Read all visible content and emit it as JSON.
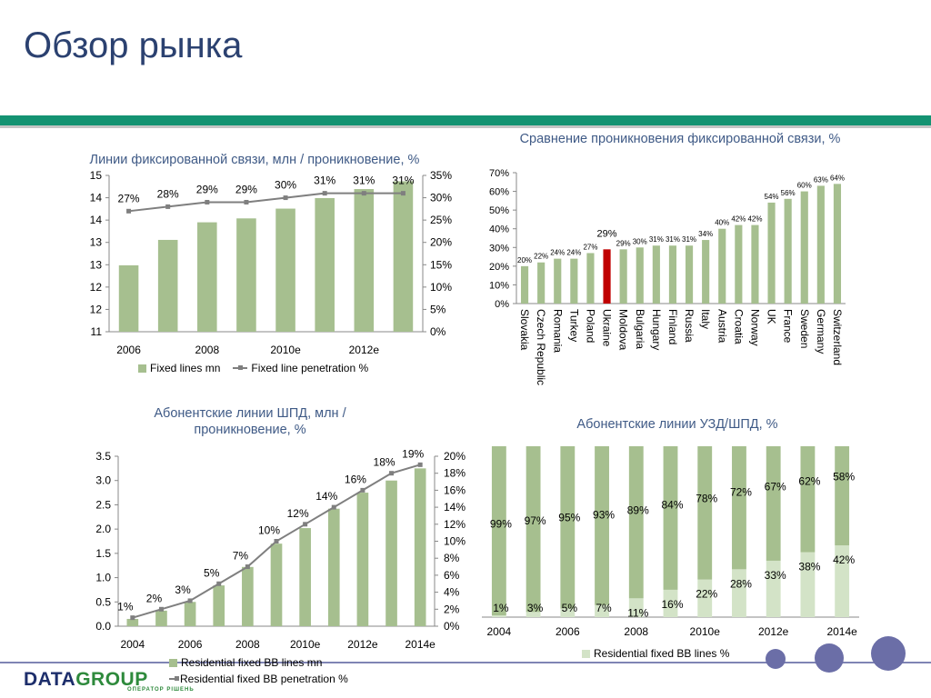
{
  "page": {
    "title": "Обзор рынка"
  },
  "logo": {
    "part1": "DATA",
    "part2": "GROUP",
    "tagline": "ОПЕРАТОР РІШЕНЬ"
  },
  "colors": {
    "bar": "#a6bf8f",
    "bar_light": "#d3e3c7",
    "highlight": "#c00000",
    "line": "#7f7f7f",
    "title": "#3f5a86",
    "stripe": "#149372"
  },
  "chart_data": [
    {
      "type": "bar",
      "title": "Линии фиксированной связи, млн / проникновение, %",
      "categories": [
        "2006",
        "2007",
        "2008",
        "2009",
        "2010e",
        "2011e",
        "2012e",
        "2013e"
      ],
      "x_tick_labels": [
        "2006",
        "2008",
        "2010e",
        "2012e"
      ],
      "y_ticks": [
        "11",
        "12",
        "12",
        "13",
        "13",
        "14",
        "14",
        "15"
      ],
      "y_range": [
        11,
        15
      ],
      "y2_ticks": [
        "0%",
        "5%",
        "10%",
        "15%",
        "20%",
        "25%",
        "30%",
        "35%"
      ],
      "y2_range": [
        0,
        35
      ],
      "series": [
        {
          "name": "Fixed lines mn",
          "type": "bar",
          "values": [
            12.7,
            13.35,
            13.8,
            13.9,
            14.15,
            14.42,
            14.65,
            14.85
          ]
        },
        {
          "name": "Fixed line penetration %",
          "type": "line",
          "values": [
            27,
            28,
            29,
            29,
            30,
            31,
            31,
            31
          ],
          "labels": [
            "27%",
            "28%",
            "29%",
            "29%",
            "30%",
            "31%",
            "31%",
            "31%"
          ]
        }
      ],
      "legend": "bottom"
    },
    {
      "type": "bar",
      "title": "Сравнение проникновения фиксированной связи, %",
      "categories": [
        "Slovakia",
        "Czech Republic",
        "Romania",
        "Turkey",
        "Poland",
        "Ukraine",
        "Moldova",
        "Bulgaria",
        "Hungary",
        "Finland",
        "Russia",
        "Italy",
        "Austria",
        "Croatia",
        "Norway",
        "UK",
        "France",
        "Sweden",
        "Germany",
        "Switzerland"
      ],
      "values": [
        20,
        22,
        24,
        24,
        27,
        29,
        29,
        30,
        31,
        31,
        31,
        34,
        40,
        42,
        42,
        54,
        56,
        60,
        63,
        64
      ],
      "labels": [
        "20%",
        "22%",
        "24%",
        "24%",
        "27%",
        "29%",
        "29%",
        "30%",
        "31%",
        "31%",
        "31%",
        "34%",
        "40%",
        "42%",
        "42%",
        "54%",
        "56%",
        "60%",
        "63%",
        "64%"
      ],
      "highlight": "Ukraine",
      "y_ticks": [
        "0%",
        "10%",
        "20%",
        "30%",
        "40%",
        "50%",
        "60%",
        "70%"
      ],
      "y_range": [
        0,
        70
      ]
    },
    {
      "type": "bar",
      "title": "Абонентские линии ШПД, млн / проникновение, %",
      "categories": [
        "2004",
        "2005",
        "2006",
        "2007",
        "2008",
        "2009",
        "2010e",
        "2011e",
        "2012e",
        "2013e",
        "2014e"
      ],
      "x_tick_labels": [
        "2004",
        "2006",
        "2008",
        "2010e",
        "2012e",
        "2014e"
      ],
      "y_ticks": [
        "0.0",
        "0.5",
        "1.0",
        "1.5",
        "2.0",
        "2.5",
        "3.0",
        "3.5"
      ],
      "y_range": [
        0,
        3.5
      ],
      "y2_ticks": [
        "0%",
        "2%",
        "4%",
        "6%",
        "8%",
        "10%",
        "12%",
        "14%",
        "16%",
        "18%",
        "20%"
      ],
      "y2_range": [
        0,
        20
      ],
      "series": [
        {
          "name": "Residential fixed BB lines mn",
          "type": "bar",
          "values": [
            0.15,
            0.32,
            0.5,
            0.84,
            1.22,
            1.7,
            2.02,
            2.42,
            2.75,
            3.0,
            3.25
          ]
        },
        {
          "name": "Residential fixed BB penetration %",
          "type": "line",
          "values": [
            1,
            2,
            3,
            5,
            7,
            10,
            12,
            14,
            16,
            18,
            19
          ],
          "labels": [
            "1%",
            "2%",
            "3%",
            "5%",
            "7%",
            "10%",
            "12%",
            "14%",
            "16%",
            "18%",
            "19%"
          ]
        }
      ],
      "legend": "bottom"
    },
    {
      "type": "bar",
      "stacked": true,
      "title": "Абонентские линии УЗД/ШПД, %",
      "categories": [
        "2004",
        "2005",
        "2006",
        "2007",
        "2008",
        "2009",
        "2010e",
        "2011e",
        "2012e",
        "2013e",
        "2014e"
      ],
      "x_tick_labels": [
        "2004",
        "2006",
        "2008",
        "2010e",
        "2012e",
        "2014e"
      ],
      "y_range": [
        0,
        100
      ],
      "series": [
        {
          "name": "Residential fixed BB lines %",
          "values": [
            1,
            3,
            5,
            7,
            11,
            16,
            22,
            28,
            33,
            38,
            42
          ],
          "labels": [
            "1%",
            "3%",
            "5%",
            "7%",
            "11%",
            "16%",
            "22%",
            "28%",
            "33%",
            "38%",
            "42%"
          ]
        },
        {
          "values": [
            99,
            97,
            95,
            93,
            89,
            84,
            78,
            72,
            67,
            62,
            58
          ],
          "labels": [
            "99%",
            "97%",
            "95%",
            "93%",
            "89%",
            "84%",
            "78%",
            "72%",
            "67%",
            "62%",
            "58%"
          ]
        }
      ],
      "legend": "bottom"
    }
  ]
}
